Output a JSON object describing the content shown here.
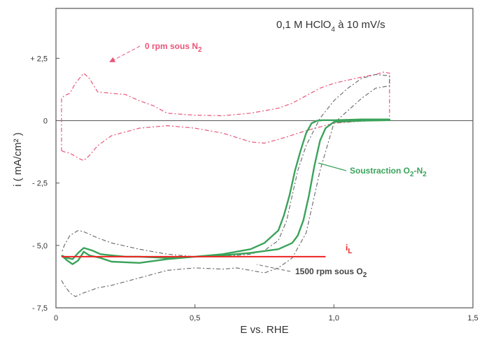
{
  "chart_data": {
    "type": "line",
    "title": {
      "main": "0,1 M HClO",
      "sub": "4",
      "rest": " à 10 mV/s"
    },
    "xlabel": "E vs. RHE",
    "ylabel": "i ( mA/cm² )",
    "xlim": [
      0,
      1.5
    ],
    "ylim": [
      -7.5,
      4.5
    ],
    "x_ticks": [
      {
        "value": 0,
        "label": "0"
      },
      {
        "value": 0.5,
        "label": "0,5"
      },
      {
        "value": 1.0,
        "label": "1,0"
      },
      {
        "value": 1.5,
        "label": "1,5"
      }
    ],
    "y_ticks": [
      {
        "value": 2.5,
        "label": "+ 2,5"
      },
      {
        "value": 0,
        "label": "0"
      },
      {
        "value": -2.5,
        "label": "- 2,5"
      },
      {
        "value": -5.0,
        "label": "- 5,0"
      },
      {
        "value": -7.5,
        "label": "- 7,5"
      }
    ],
    "grid": false,
    "annotations": {
      "n2": {
        "main": "0 rpm sous N",
        "sub": "2"
      },
      "sub": {
        "main": "Soustraction O",
        "sub1": "2",
        "mid": "-N",
        "sub2": "2"
      },
      "o2": {
        "main": "1500 rpm sous O",
        "sub": "2"
      },
      "il": {
        "main": "i",
        "sub": "L"
      }
    },
    "colors": {
      "n2": "#e8557a",
      "sub": "#3aa35a",
      "o2": "#666666",
      "il": "#ee2222",
      "axis": "#555555"
    },
    "series": [
      {
        "name": "0 rpm sous N2",
        "x": [
          0.02,
          0.03,
          0.05,
          0.08,
          0.1,
          0.12,
          0.15,
          0.2,
          0.3,
          0.4,
          0.5,
          0.6,
          0.7,
          0.75,
          0.8,
          0.9,
          1.0,
          1.1,
          1.15,
          1.18,
          1.2,
          1.2,
          1.18,
          1.15,
          1.1,
          1.0,
          0.95,
          0.9,
          0.85,
          0.8,
          0.7,
          0.6,
          0.5,
          0.4,
          0.35,
          0.3,
          0.25,
          0.2,
          0.15,
          0.12,
          0.1,
          0.07,
          0.05,
          0.03,
          0.02,
          0.02
        ],
        "y": [
          -1.2,
          -1.25,
          -1.3,
          -1.5,
          -1.6,
          -1.4,
          -1.0,
          -0.6,
          -0.3,
          -0.2,
          -0.3,
          -0.5,
          -0.85,
          -0.9,
          -0.75,
          -0.4,
          -0.1,
          -0.02,
          0.0,
          0.0,
          0.05,
          1.9,
          1.95,
          1.85,
          1.75,
          1.5,
          1.3,
          1.0,
          0.7,
          0.5,
          0.3,
          0.2,
          0.22,
          0.3,
          0.6,
          0.8,
          1.05,
          1.1,
          1.15,
          1.7,
          1.9,
          1.5,
          1.1,
          1.0,
          0.9,
          -1.2
        ]
      },
      {
        "name": "1500 rpm sous O2",
        "x": [
          0.02,
          0.03,
          0.05,
          0.07,
          0.1,
          0.15,
          0.2,
          0.3,
          0.4,
          0.5,
          0.6,
          0.65,
          0.7,
          0.75,
          0.8,
          0.85,
          0.9,
          0.95,
          1.0,
          1.05,
          1.1,
          1.15,
          1.2,
          1.2,
          1.15,
          1.1,
          1.05,
          1.0,
          0.95,
          0.9,
          0.87,
          0.85,
          0.83,
          0.8,
          0.75,
          0.7,
          0.6,
          0.5,
          0.4,
          0.3,
          0.2,
          0.15,
          0.1,
          0.08,
          0.05,
          0.03,
          0.02
        ],
        "y": [
          -6.4,
          -6.6,
          -6.9,
          -7.05,
          -6.9,
          -6.7,
          -6.6,
          -6.3,
          -6.0,
          -5.9,
          -5.95,
          -5.9,
          -6.0,
          -6.1,
          -5.9,
          -5.5,
          -4.5,
          -2.0,
          -0.1,
          0.4,
          0.9,
          1.3,
          1.4,
          1.8,
          1.85,
          1.7,
          1.3,
          0.8,
          0.1,
          -1.0,
          -2.0,
          -3.0,
          -4.0,
          -4.8,
          -5.2,
          -5.35,
          -5.45,
          -5.45,
          -5.35,
          -5.15,
          -4.9,
          -4.7,
          -4.45,
          -4.4,
          -4.6,
          -5.0,
          -5.3
        ]
      },
      {
        "name": "Soustraction O2-N2",
        "x": [
          0.02,
          0.04,
          0.06,
          0.08,
          0.1,
          0.13,
          0.16,
          0.2,
          0.25,
          0.3,
          0.4,
          0.5,
          0.6,
          0.7,
          0.75,
          0.8,
          0.82,
          0.84,
          0.86,
          0.88,
          0.9,
          0.92,
          0.94,
          0.96,
          1.0,
          1.1,
          1.2,
          1.2,
          1.1,
          1.0,
          0.97,
          0.95,
          0.93,
          0.91,
          0.89,
          0.87,
          0.85,
          0.8,
          0.7,
          0.6,
          0.5,
          0.4,
          0.3,
          0.2,
          0.16,
          0.12,
          0.1,
          0.08,
          0.06,
          0.04,
          0.02
        ],
        "y": [
          -5.4,
          -5.5,
          -5.55,
          -5.3,
          -5.1,
          -5.2,
          -5.35,
          -5.4,
          -5.45,
          -5.45,
          -5.5,
          -5.45,
          -5.35,
          -5.15,
          -4.9,
          -4.4,
          -3.8,
          -3.0,
          -2.0,
          -1.2,
          -0.5,
          -0.1,
          0.0,
          0.02,
          0.02,
          0.05,
          0.05,
          0.02,
          0.0,
          -0.05,
          -0.3,
          -0.8,
          -1.8,
          -3.0,
          -4.0,
          -4.6,
          -4.9,
          -5.15,
          -5.3,
          -5.4,
          -5.45,
          -5.55,
          -5.7,
          -5.65,
          -5.5,
          -5.4,
          -5.25,
          -5.6,
          -5.75,
          -5.6,
          -5.4
        ]
      },
      {
        "name": "iL",
        "x": [
          0.02,
          0.97
        ],
        "y": [
          -5.45,
          -5.45
        ]
      }
    ]
  }
}
